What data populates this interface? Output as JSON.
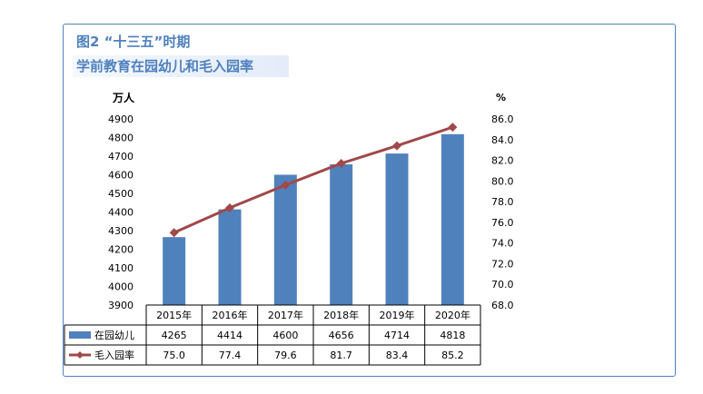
{
  "title": {
    "line1": "图2 “十三五”时期",
    "line2": "学前教育在园幼儿和毛入园率"
  },
  "chart_data": {
    "type": "bar+line",
    "categories": [
      "2015年",
      "2016年",
      "2017年",
      "2018年",
      "2019年",
      "2020年"
    ],
    "series": [
      {
        "name": "在园幼儿",
        "type": "bar",
        "axis": "left",
        "values": [
          4265,
          4414,
          4600,
          4656,
          4714,
          4818
        ],
        "labels": [
          "4265",
          "4414",
          "4600",
          "4656",
          "4714",
          "4818"
        ]
      },
      {
        "name": "毛入园率",
        "type": "line",
        "axis": "right",
        "values": [
          75.0,
          77.4,
          79.6,
          81.7,
          83.4,
          85.2
        ],
        "labels": [
          "75.0",
          "77.4",
          "79.6",
          "81.7",
          "83.4",
          "85.2"
        ]
      }
    ],
    "left_axis": {
      "unit": "万人",
      "min": 3900,
      "max": 4900,
      "step": 100,
      "ticks": [
        "3900",
        "4000",
        "4100",
        "4200",
        "4300",
        "4400",
        "4500",
        "4600",
        "4700",
        "4800",
        "4900"
      ]
    },
    "right_axis": {
      "unit": "%",
      "min": 68.0,
      "max": 86.0,
      "step": 2.0,
      "ticks": [
        "68.0",
        "70.0",
        "72.0",
        "74.0",
        "76.0",
        "78.0",
        "80.0",
        "82.0",
        "84.0",
        "86.0"
      ]
    },
    "legend_in_table": true,
    "colors": {
      "bar": "#4f81bd",
      "line": "#a0484a",
      "grid": "#000000",
      "frame": "#4f81bd"
    }
  }
}
